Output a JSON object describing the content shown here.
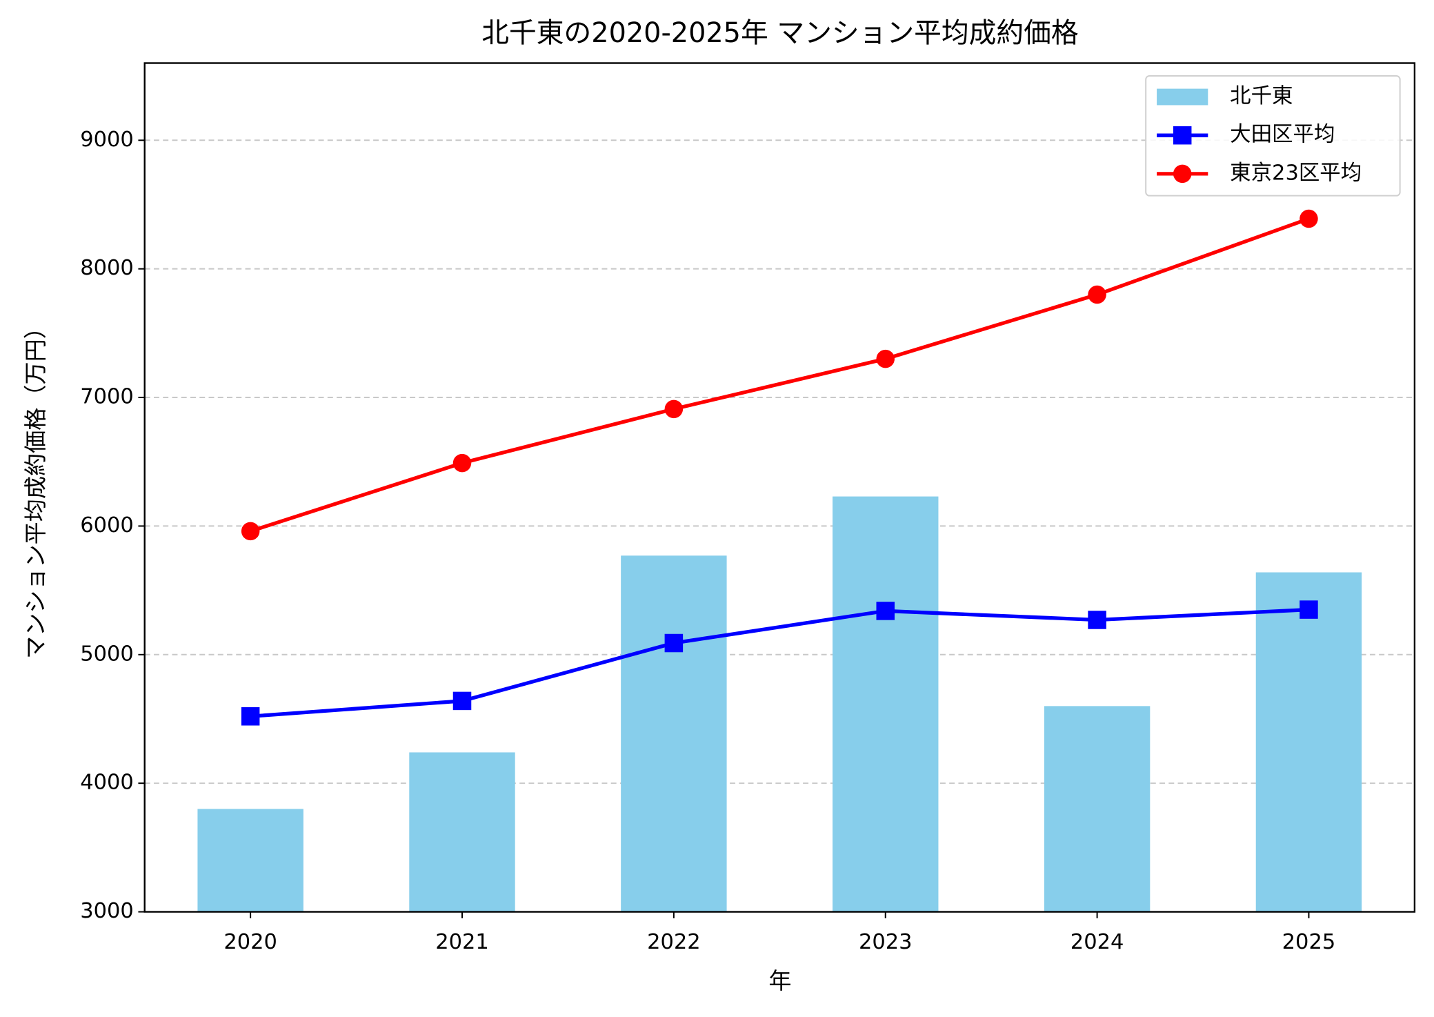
{
  "chart_data": {
    "type": "bar",
    "title": "北千東の2020-2025年 マンション平均成約価格",
    "x_label": "年",
    "y_label": "マンション平均成約価格（万円）",
    "categories": [
      "2020",
      "2021",
      "2022",
      "2023",
      "2024",
      "2025"
    ],
    "series": [
      {
        "name": "北千東",
        "type": "bar",
        "color": "#87ceeb",
        "values": [
          3800,
          4240,
          5770,
          6230,
          4600,
          5640
        ]
      },
      {
        "name": "大田区平均",
        "type": "line",
        "marker": "square",
        "color": "#0000ff",
        "values": [
          4520,
          4640,
          5090,
          5340,
          5270,
          5350
        ]
      },
      {
        "name": "東京23区平均",
        "type": "line",
        "marker": "circle",
        "color": "#ff0000",
        "values": [
          5960,
          6490,
          6910,
          7300,
          7800,
          8390
        ]
      }
    ],
    "ylim": [
      3000,
      9600
    ],
    "yticks": [
      3000,
      4000,
      5000,
      6000,
      7000,
      8000,
      9000
    ],
    "grid": true,
    "legend": "upper-right"
  }
}
